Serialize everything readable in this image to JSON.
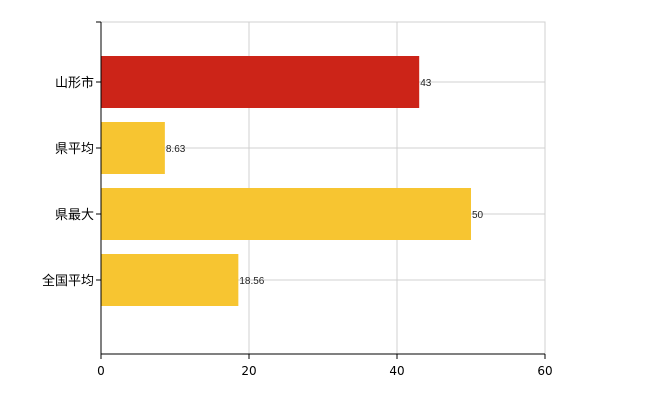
{
  "chart_data": {
    "type": "bar",
    "orientation": "horizontal",
    "categories": [
      "山形市",
      "県平均",
      "県最大",
      "全国平均"
    ],
    "values": [
      43,
      8.63,
      50,
      18.56
    ],
    "data_labels": [
      "43",
      "8.63",
      "50",
      "18.56"
    ],
    "bar_colors": [
      "#cc2418",
      "#f7c531",
      "#f7c531",
      "#f7c531"
    ],
    "xlim": [
      0,
      60
    ],
    "xticks": [
      0,
      20,
      40,
      60
    ],
    "xtick_labels": [
      "0",
      "20",
      "40",
      "60"
    ],
    "grid": true,
    "title": "",
    "xlabel": "",
    "ylabel": ""
  }
}
